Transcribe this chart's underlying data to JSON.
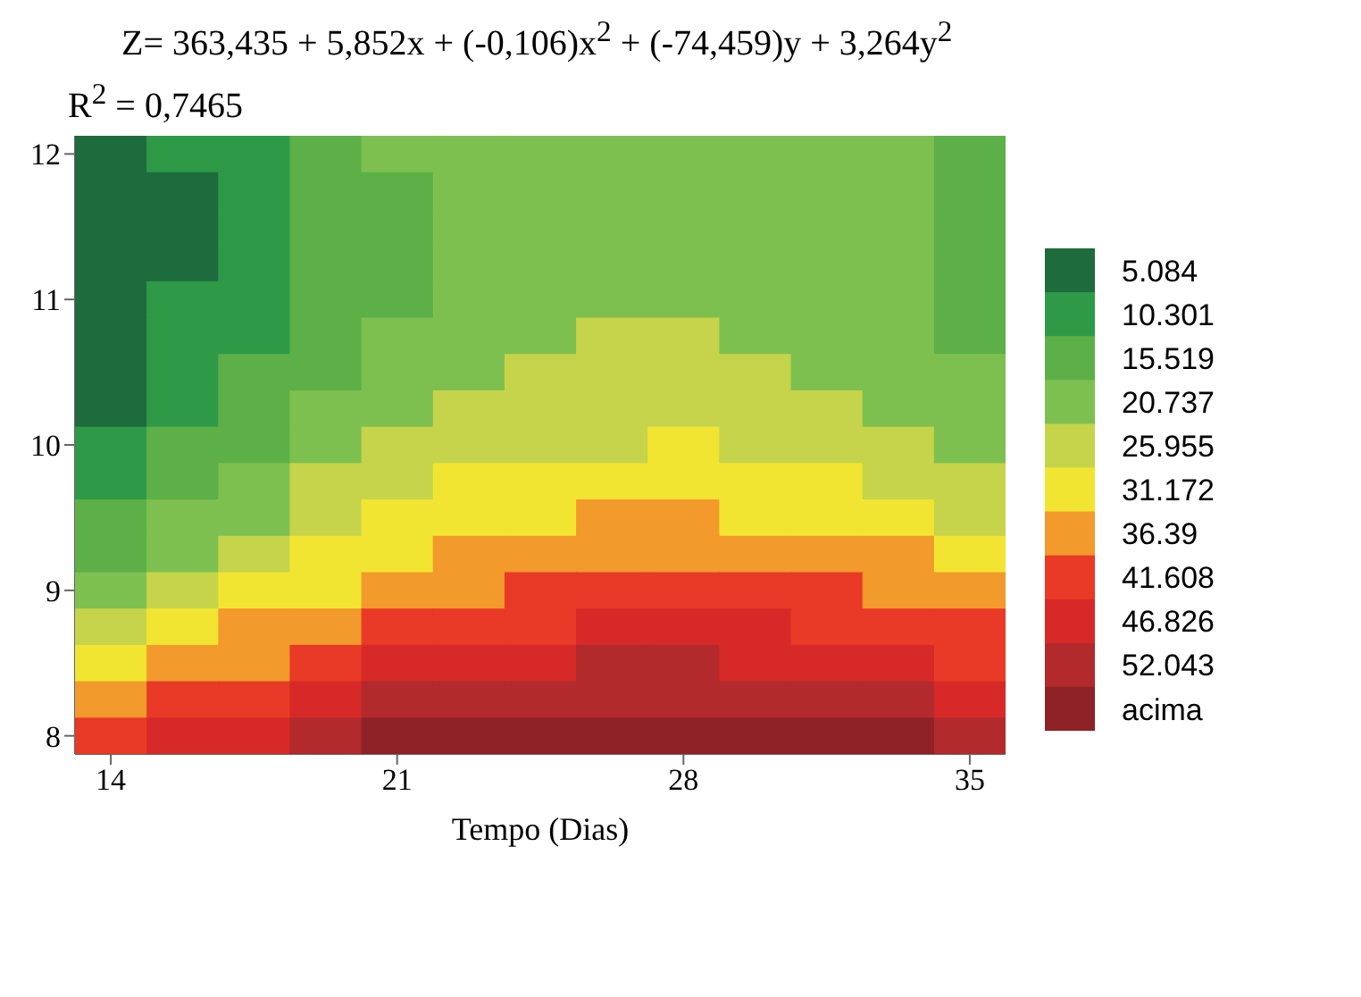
{
  "chart_data": {
    "type": "heatmap",
    "title": "Z= 363,435 + 5,852x + (-0,106)x$^{2}$ + (-74,459)y + 3,264y$^{2}$",
    "subtitle": "R$^{2}$ = 0,7465",
    "xlabel": "Tempo (Dias)",
    "categories": [
      "14",
      null,
      null,
      null,
      "21",
      null,
      null,
      null,
      "28",
      null,
      null,
      null,
      "35"
    ],
    "y_categories": [
      "12",
      null,
      null,
      null,
      "11",
      null,
      null,
      null,
      "10",
      null,
      null,
      null,
      "9",
      null,
      null,
      null,
      "8"
    ],
    "cells": [
      [
        5.084,
        10.301,
        10.301,
        15.519,
        20.737,
        20.737,
        20.737,
        20.737,
        20.737,
        20.737,
        20.737,
        20.737,
        15.519
      ],
      [
        5.084,
        5.084,
        10.301,
        15.519,
        15.519,
        20.737,
        20.737,
        20.737,
        20.737,
        20.737,
        20.737,
        20.737,
        15.519
      ],
      [
        5.084,
        5.084,
        10.301,
        15.519,
        15.519,
        20.737,
        20.737,
        20.737,
        20.737,
        20.737,
        20.737,
        20.737,
        15.519
      ],
      [
        5.084,
        5.084,
        10.301,
        15.519,
        15.519,
        20.737,
        20.737,
        20.737,
        20.737,
        20.737,
        20.737,
        20.737,
        15.519
      ],
      [
        5.084,
        10.301,
        10.301,
        15.519,
        15.519,
        20.737,
        20.737,
        20.737,
        20.737,
        20.737,
        20.737,
        20.737,
        15.519
      ],
      [
        5.084,
        10.301,
        10.301,
        15.519,
        20.737,
        20.737,
        20.737,
        25.955,
        25.955,
        20.737,
        20.737,
        20.737,
        15.519
      ],
      [
        5.084,
        10.301,
        15.519,
        15.519,
        20.737,
        20.737,
        25.955,
        25.955,
        25.955,
        25.955,
        20.737,
        20.737,
        20.737
      ],
      [
        5.084,
        10.301,
        15.519,
        20.737,
        20.737,
        25.955,
        25.955,
        25.955,
        25.955,
        25.955,
        25.955,
        20.737,
        20.737
      ],
      [
        10.301,
        15.519,
        15.519,
        20.737,
        25.955,
        25.955,
        25.955,
        25.955,
        31.172,
        25.955,
        25.955,
        25.955,
        20.737
      ],
      [
        10.301,
        15.519,
        20.737,
        25.955,
        25.955,
        31.172,
        31.172,
        31.172,
        31.172,
        31.172,
        31.172,
        25.955,
        25.955
      ],
      [
        15.519,
        20.737,
        20.737,
        25.955,
        31.172,
        31.172,
        31.172,
        36.39,
        36.39,
        31.172,
        31.172,
        31.172,
        25.955
      ],
      [
        15.519,
        20.737,
        25.955,
        31.172,
        31.172,
        36.39,
        36.39,
        36.39,
        36.39,
        36.39,
        36.39,
        36.39,
        31.172
      ],
      [
        20.737,
        25.955,
        31.172,
        31.172,
        36.39,
        36.39,
        41.608,
        41.608,
        41.608,
        41.608,
        41.608,
        36.39,
        36.39
      ],
      [
        25.955,
        31.172,
        36.39,
        36.39,
        41.608,
        41.608,
        41.608,
        46.826,
        46.826,
        46.826,
        41.608,
        41.608,
        41.608
      ],
      [
        31.172,
        36.39,
        36.39,
        41.608,
        46.826,
        46.826,
        46.826,
        52.043,
        52.043,
        46.826,
        46.826,
        46.826,
        41.608
      ],
      [
        36.39,
        41.608,
        41.608,
        46.826,
        52.043,
        52.043,
        52.043,
        52.043,
        52.043,
        52.043,
        52.043,
        52.043,
        46.826
      ],
      [
        41.608,
        46.826,
        46.826,
        52.043,
        57.261,
        57.261,
        57.261,
        57.261,
        57.261,
        57.261,
        57.261,
        57.261,
        52.043
      ]
    ],
    "clim": [
      2.475,
      59.87
    ],
    "cticks": [
      5.084,
      10.301,
      15.519,
      20.737,
      25.955,
      31.172,
      36.39,
      41.608,
      46.826,
      52.043,
      {
        "value": 57.261,
        "label": "acima"
      }
    ],
    "colors": [
      "#1e6b3e",
      "#2e9a48",
      "#5cb047",
      "#7dc050",
      "#c5d44a",
      "#f2e532",
      "#f29a2c",
      "#e83a26",
      "#d72a28",
      "#b22a2c",
      "#8e2226"
    ]
  }
}
